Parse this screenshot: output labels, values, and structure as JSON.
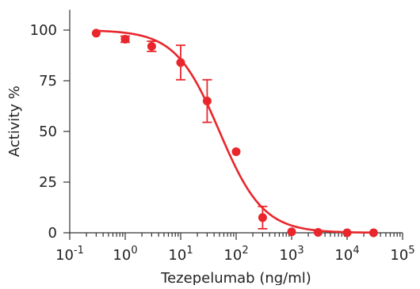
{
  "chart_data": {
    "type": "scatter",
    "title": "",
    "xlabel": "Tezepelumab (ng/ml)",
    "ylabel": "Activity %",
    "xscale": "log",
    "xlim": [
      0.1,
      100000
    ],
    "ylim": [
      0,
      110
    ],
    "grid": false,
    "legend": "none",
    "x_ticks": [
      {
        "value": 0.1,
        "base": "10",
        "exp": "-1"
      },
      {
        "value": 1,
        "base": "10",
        "exp": "0"
      },
      {
        "value": 10,
        "base": "10",
        "exp": "1"
      },
      {
        "value": 100,
        "base": "10",
        "exp": "2"
      },
      {
        "value": 1000,
        "base": "10",
        "exp": "3"
      },
      {
        "value": 10000,
        "base": "10",
        "exp": "4"
      },
      {
        "value": 100000,
        "base": "10",
        "exp": "5"
      }
    ],
    "y_ticks": [
      {
        "value": 0,
        "label": "0"
      },
      {
        "value": 25,
        "label": "25"
      },
      {
        "value": 50,
        "label": "50"
      },
      {
        "value": 75,
        "label": "75"
      },
      {
        "value": 100,
        "label": "100"
      }
    ],
    "points": [
      {
        "x": 0.3,
        "y": 98.5,
        "err": 0
      },
      {
        "x": 1,
        "y": 95.5,
        "err": 1.5
      },
      {
        "x": 3,
        "y": 92.0,
        "err": 2.5
      },
      {
        "x": 10,
        "y": 84.0,
        "err": 8.5
      },
      {
        "x": 30,
        "y": 65.0,
        "err": 10.5
      },
      {
        "x": 100,
        "y": 40.0,
        "err": 0
      },
      {
        "x": 300,
        "y": 7.5,
        "err": 5.5
      },
      {
        "x": 1000,
        "y": 0.5,
        "err": 0
      },
      {
        "x": 3000,
        "y": 0.2,
        "err": 0
      },
      {
        "x": 10000,
        "y": 0.0,
        "err": 0
      },
      {
        "x": 30000,
        "y": 0.0,
        "err": 0
      }
    ],
    "fit": {
      "model": "4-parameter logistic",
      "top": 100,
      "bottom": 0,
      "ec50": 50,
      "hill": 1.1
    },
    "colors": {
      "series": "#e8262b",
      "axis": "#333333",
      "text": "#222222"
    }
  }
}
